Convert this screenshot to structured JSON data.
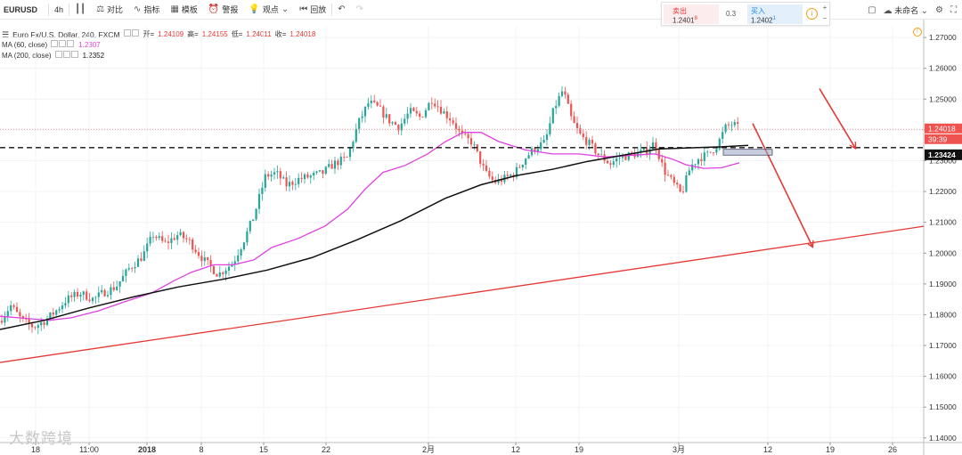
{
  "toolbar": {
    "symbol": "EURUSD",
    "interval": "4h",
    "compare_label": "对比",
    "indicators_label": "指标",
    "templates_label": "模板",
    "alert_label": "警报",
    "ideas_label": "观点",
    "replay_label": "回放",
    "unnamed_label": "未命名",
    "colors": {
      "sell_text": "#e53935",
      "buy_text": "#1e88e5"
    }
  },
  "trade": {
    "sell_label": "卖出",
    "sell_value": "1.2401",
    "sell_superscript": "8",
    "spread": "0.3",
    "buy_label": "买入",
    "buy_value": "1.2402",
    "buy_superscript": "1",
    "plus": "+",
    "minus": "−"
  },
  "legend": {
    "title": "Euro Fx/U.S. Dollar, 240, FXCM",
    "open_label": "开=",
    "open": "1.24109",
    "high_label": "高=",
    "high": "1.24155",
    "low_label": "低=",
    "low": "1.24011",
    "close_label": "收=",
    "close": "1.24018",
    "ma60_label": "MA (60, close)",
    "ma60_value": "1.2307",
    "ma200_label": "MA (200, close)",
    "ma200_value": "1.2352",
    "colors": {
      "ma60": "#e040e0",
      "ma200": "#111111",
      "up": "#26a69a",
      "down": "#ef5350",
      "trendline": "#e53935"
    }
  },
  "chart_data": {
    "type": "candlestick",
    "price_axis_labels": [
      "1.27000",
      "1.26000",
      "1.25000",
      "1.24000",
      "1.23000",
      "1.22000",
      "1.21000",
      "1.20000",
      "1.19000",
      "1.18000",
      "1.17000",
      "1.16000",
      "1.15000",
      "1.14000"
    ],
    "ylim": [
      1.1385,
      1.2735
    ],
    "time_axis_labels": [
      "18",
      "11:00",
      "2018",
      "8",
      "15",
      "22",
      "2月",
      "12",
      "19",
      "3月",
      "12",
      "19",
      "26"
    ],
    "last_price_label": "1.24018",
    "countdown_label": "39:39",
    "horizontal_line_label": "1.23424",
    "last_price": 1.24018,
    "horizontal_level": 1.23424,
    "trendline": {
      "from": [
        0,
        1.1645
      ],
      "to": [
        1037,
        1.2087
      ]
    },
    "ma60_points": [
      [
        0,
        1.1795
      ],
      [
        30,
        1.1788
      ],
      [
        55,
        1.1782
      ],
      [
        80,
        1.179
      ],
      [
        110,
        1.1812
      ],
      [
        140,
        1.1842
      ],
      [
        170,
        1.187
      ],
      [
        195,
        1.191
      ],
      [
        215,
        1.1938
      ],
      [
        240,
        1.1962
      ],
      [
        262,
        1.1962
      ],
      [
        285,
        1.1978
      ],
      [
        305,
        1.2018
      ],
      [
        335,
        1.2048
      ],
      [
        365,
        1.2088
      ],
      [
        390,
        1.2142
      ],
      [
        410,
        1.2208
      ],
      [
        430,
        1.2262
      ],
      [
        455,
        1.2285
      ],
      [
        480,
        1.2322
      ],
      [
        500,
        1.2362
      ],
      [
        520,
        1.2392
      ],
      [
        540,
        1.2392
      ],
      [
        560,
        1.2362
      ],
      [
        590,
        1.2335
      ],
      [
        620,
        1.2322
      ],
      [
        650,
        1.2322
      ],
      [
        680,
        1.2312
      ],
      [
        710,
        1.2318
      ],
      [
        735,
        1.2322
      ],
      [
        755,
        1.2305
      ],
      [
        770,
        1.2287
      ],
      [
        790,
        1.2275
      ],
      [
        810,
        1.2277
      ],
      [
        830,
        1.2293
      ]
    ],
    "ma200_points": [
      [
        0,
        1.1752
      ],
      [
        50,
        1.1782
      ],
      [
        100,
        1.1822
      ],
      [
        150,
        1.1858
      ],
      [
        200,
        1.189
      ],
      [
        250,
        1.1915
      ],
      [
        300,
        1.1945
      ],
      [
        350,
        1.1985
      ],
      [
        400,
        1.2042
      ],
      [
        450,
        1.2105
      ],
      [
        500,
        1.2178
      ],
      [
        540,
        1.2222
      ],
      [
        580,
        1.2252
      ],
      [
        620,
        1.2272
      ],
      [
        660,
        1.2298
      ],
      [
        700,
        1.2318
      ],
      [
        740,
        1.2338
      ],
      [
        780,
        1.2342
      ],
      [
        810,
        1.2345
      ],
      [
        840,
        1.235
      ]
    ],
    "anchors": [
      [
        0,
        1.178
      ],
      [
        12,
        1.183
      ],
      [
        25,
        1.178
      ],
      [
        38,
        1.176
      ],
      [
        50,
        1.178
      ],
      [
        62,
        1.181
      ],
      [
        75,
        1.185
      ],
      [
        90,
        1.187
      ],
      [
        105,
        1.185
      ],
      [
        115,
        1.187
      ],
      [
        130,
        1.189
      ],
      [
        145,
        1.195
      ],
      [
        160,
        1.199
      ],
      [
        172,
        1.206
      ],
      [
        185,
        1.203
      ],
      [
        200,
        1.206
      ],
      [
        212,
        1.204
      ],
      [
        228,
        1.198
      ],
      [
        245,
        1.193
      ],
      [
        262,
        1.197
      ],
      [
        275,
        1.205
      ],
      [
        285,
        1.212
      ],
      [
        298,
        1.225
      ],
      [
        310,
        1.226
      ],
      [
        322,
        1.222
      ],
      [
        335,
        1.224
      ],
      [
        350,
        1.225
      ],
      [
        362,
        1.226
      ],
      [
        375,
        1.229
      ],
      [
        390,
        1.231
      ],
      [
        402,
        1.242
      ],
      [
        414,
        1.249
      ],
      [
        425,
        1.247
      ],
      [
        437,
        1.243
      ],
      [
        448,
        1.241
      ],
      [
        460,
        1.246
      ],
      [
        472,
        1.244
      ],
      [
        485,
        1.25
      ],
      [
        497,
        1.246
      ],
      [
        508,
        1.243
      ],
      [
        518,
        1.238
      ],
      [
        530,
        1.236
      ],
      [
        545,
        1.226
      ],
      [
        555,
        1.223
      ],
      [
        565,
        1.224
      ],
      [
        578,
        1.226
      ],
      [
        590,
        1.231
      ],
      [
        600,
        1.234
      ],
      [
        612,
        1.236
      ],
      [
        622,
        1.247
      ],
      [
        632,
        1.253
      ],
      [
        642,
        1.243
      ],
      [
        652,
        1.238
      ],
      [
        660,
        1.236
      ],
      [
        672,
        1.232
      ],
      [
        685,
        1.229
      ],
      [
        695,
        1.231
      ],
      [
        710,
        1.232
      ],
      [
        725,
        1.233
      ],
      [
        735,
        1.236
      ],
      [
        745,
        1.227
      ],
      [
        755,
        1.223
      ],
      [
        765,
        1.219
      ],
      [
        775,
        1.228
      ],
      [
        785,
        1.231
      ],
      [
        795,
        1.232
      ],
      [
        805,
        1.235
      ],
      [
        815,
        1.241
      ],
      [
        823,
        1.242
      ],
      [
        830,
        1.2402
      ]
    ],
    "annotations": [
      {
        "type": "arrow",
        "from": [
          845,
          1.2421
        ],
        "to": [
          912,
          1.2022
        ],
        "color": "#e53935"
      },
      {
        "type": "arrow",
        "from": [
          920,
          1.2534
        ],
        "to": [
          960,
          1.2342
        ],
        "color": "#e53935"
      },
      {
        "type": "rectangle",
        "x": [
          812,
          867
        ],
        "y": [
          1.2337,
          1.2318
        ],
        "color": "#9aa5c6"
      }
    ]
  },
  "watermark": "大数跨境"
}
